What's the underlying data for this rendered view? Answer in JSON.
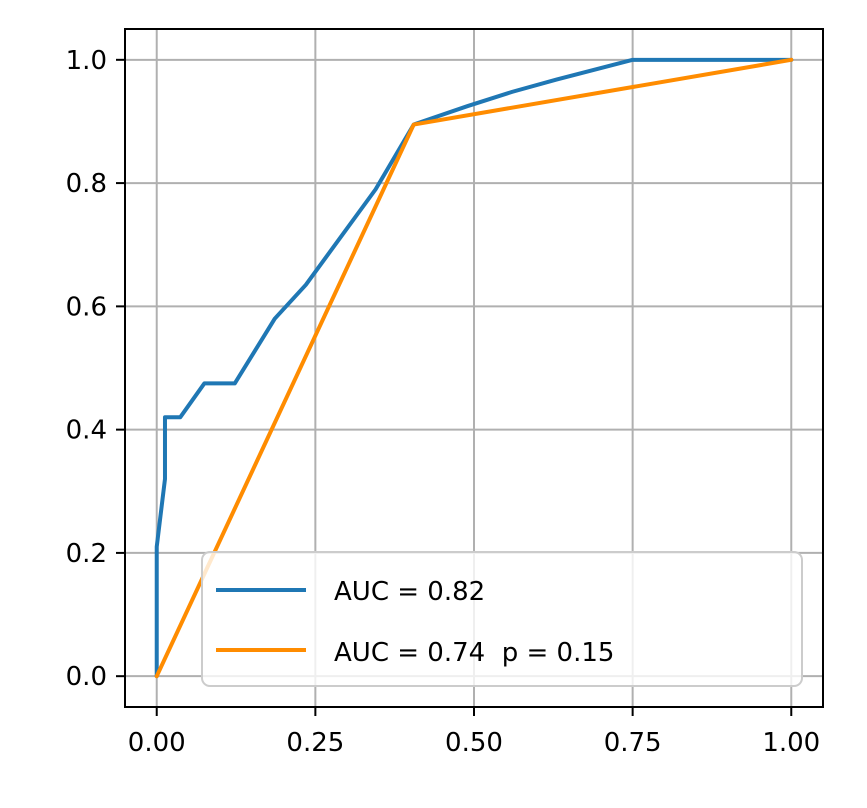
{
  "chart_data": {
    "type": "line",
    "title": "",
    "xlabel": "",
    "ylabel": "",
    "xlim": [
      -0.05,
      1.05
    ],
    "ylim": [
      -0.05,
      1.05
    ],
    "grid": true,
    "legend_position": "lower-right",
    "x_ticks": [
      {
        "value": 0.0,
        "label": "0.00"
      },
      {
        "value": 0.25,
        "label": "0.25"
      },
      {
        "value": 0.5,
        "label": "0.50"
      },
      {
        "value": 0.75,
        "label": "0.75"
      },
      {
        "value": 1.0,
        "label": "1.00"
      }
    ],
    "y_ticks": [
      {
        "value": 0.0,
        "label": "0.0"
      },
      {
        "value": 0.2,
        "label": "0.2"
      },
      {
        "value": 0.4,
        "label": "0.4"
      },
      {
        "value": 0.6,
        "label": "0.6"
      },
      {
        "value": 0.8,
        "label": "0.8"
      },
      {
        "value": 1.0,
        "label": "1.0"
      }
    ],
    "series": [
      {
        "name": "AUC = 0.82",
        "color": "#1f77b4",
        "points": [
          [
            0.0,
            0.0
          ],
          [
            0.0,
            0.21
          ],
          [
            0.013,
            0.32
          ],
          [
            0.013,
            0.42
          ],
          [
            0.037,
            0.42
          ],
          [
            0.075,
            0.475
          ],
          [
            0.123,
            0.475
          ],
          [
            0.186,
            0.58
          ],
          [
            0.235,
            0.635
          ],
          [
            0.345,
            0.79
          ],
          [
            0.405,
            0.895
          ],
          [
            0.49,
            0.925
          ],
          [
            0.56,
            0.948
          ],
          [
            0.63,
            0.968
          ],
          [
            0.75,
            1.0
          ],
          [
            1.0,
            1.0
          ]
        ]
      },
      {
        "name": "AUC = 0.74  p = 0.15",
        "color": "#ff8c00",
        "points": [
          [
            0.0,
            0.0
          ],
          [
            0.405,
            0.895
          ],
          [
            1.0,
            1.0
          ]
        ]
      }
    ]
  }
}
